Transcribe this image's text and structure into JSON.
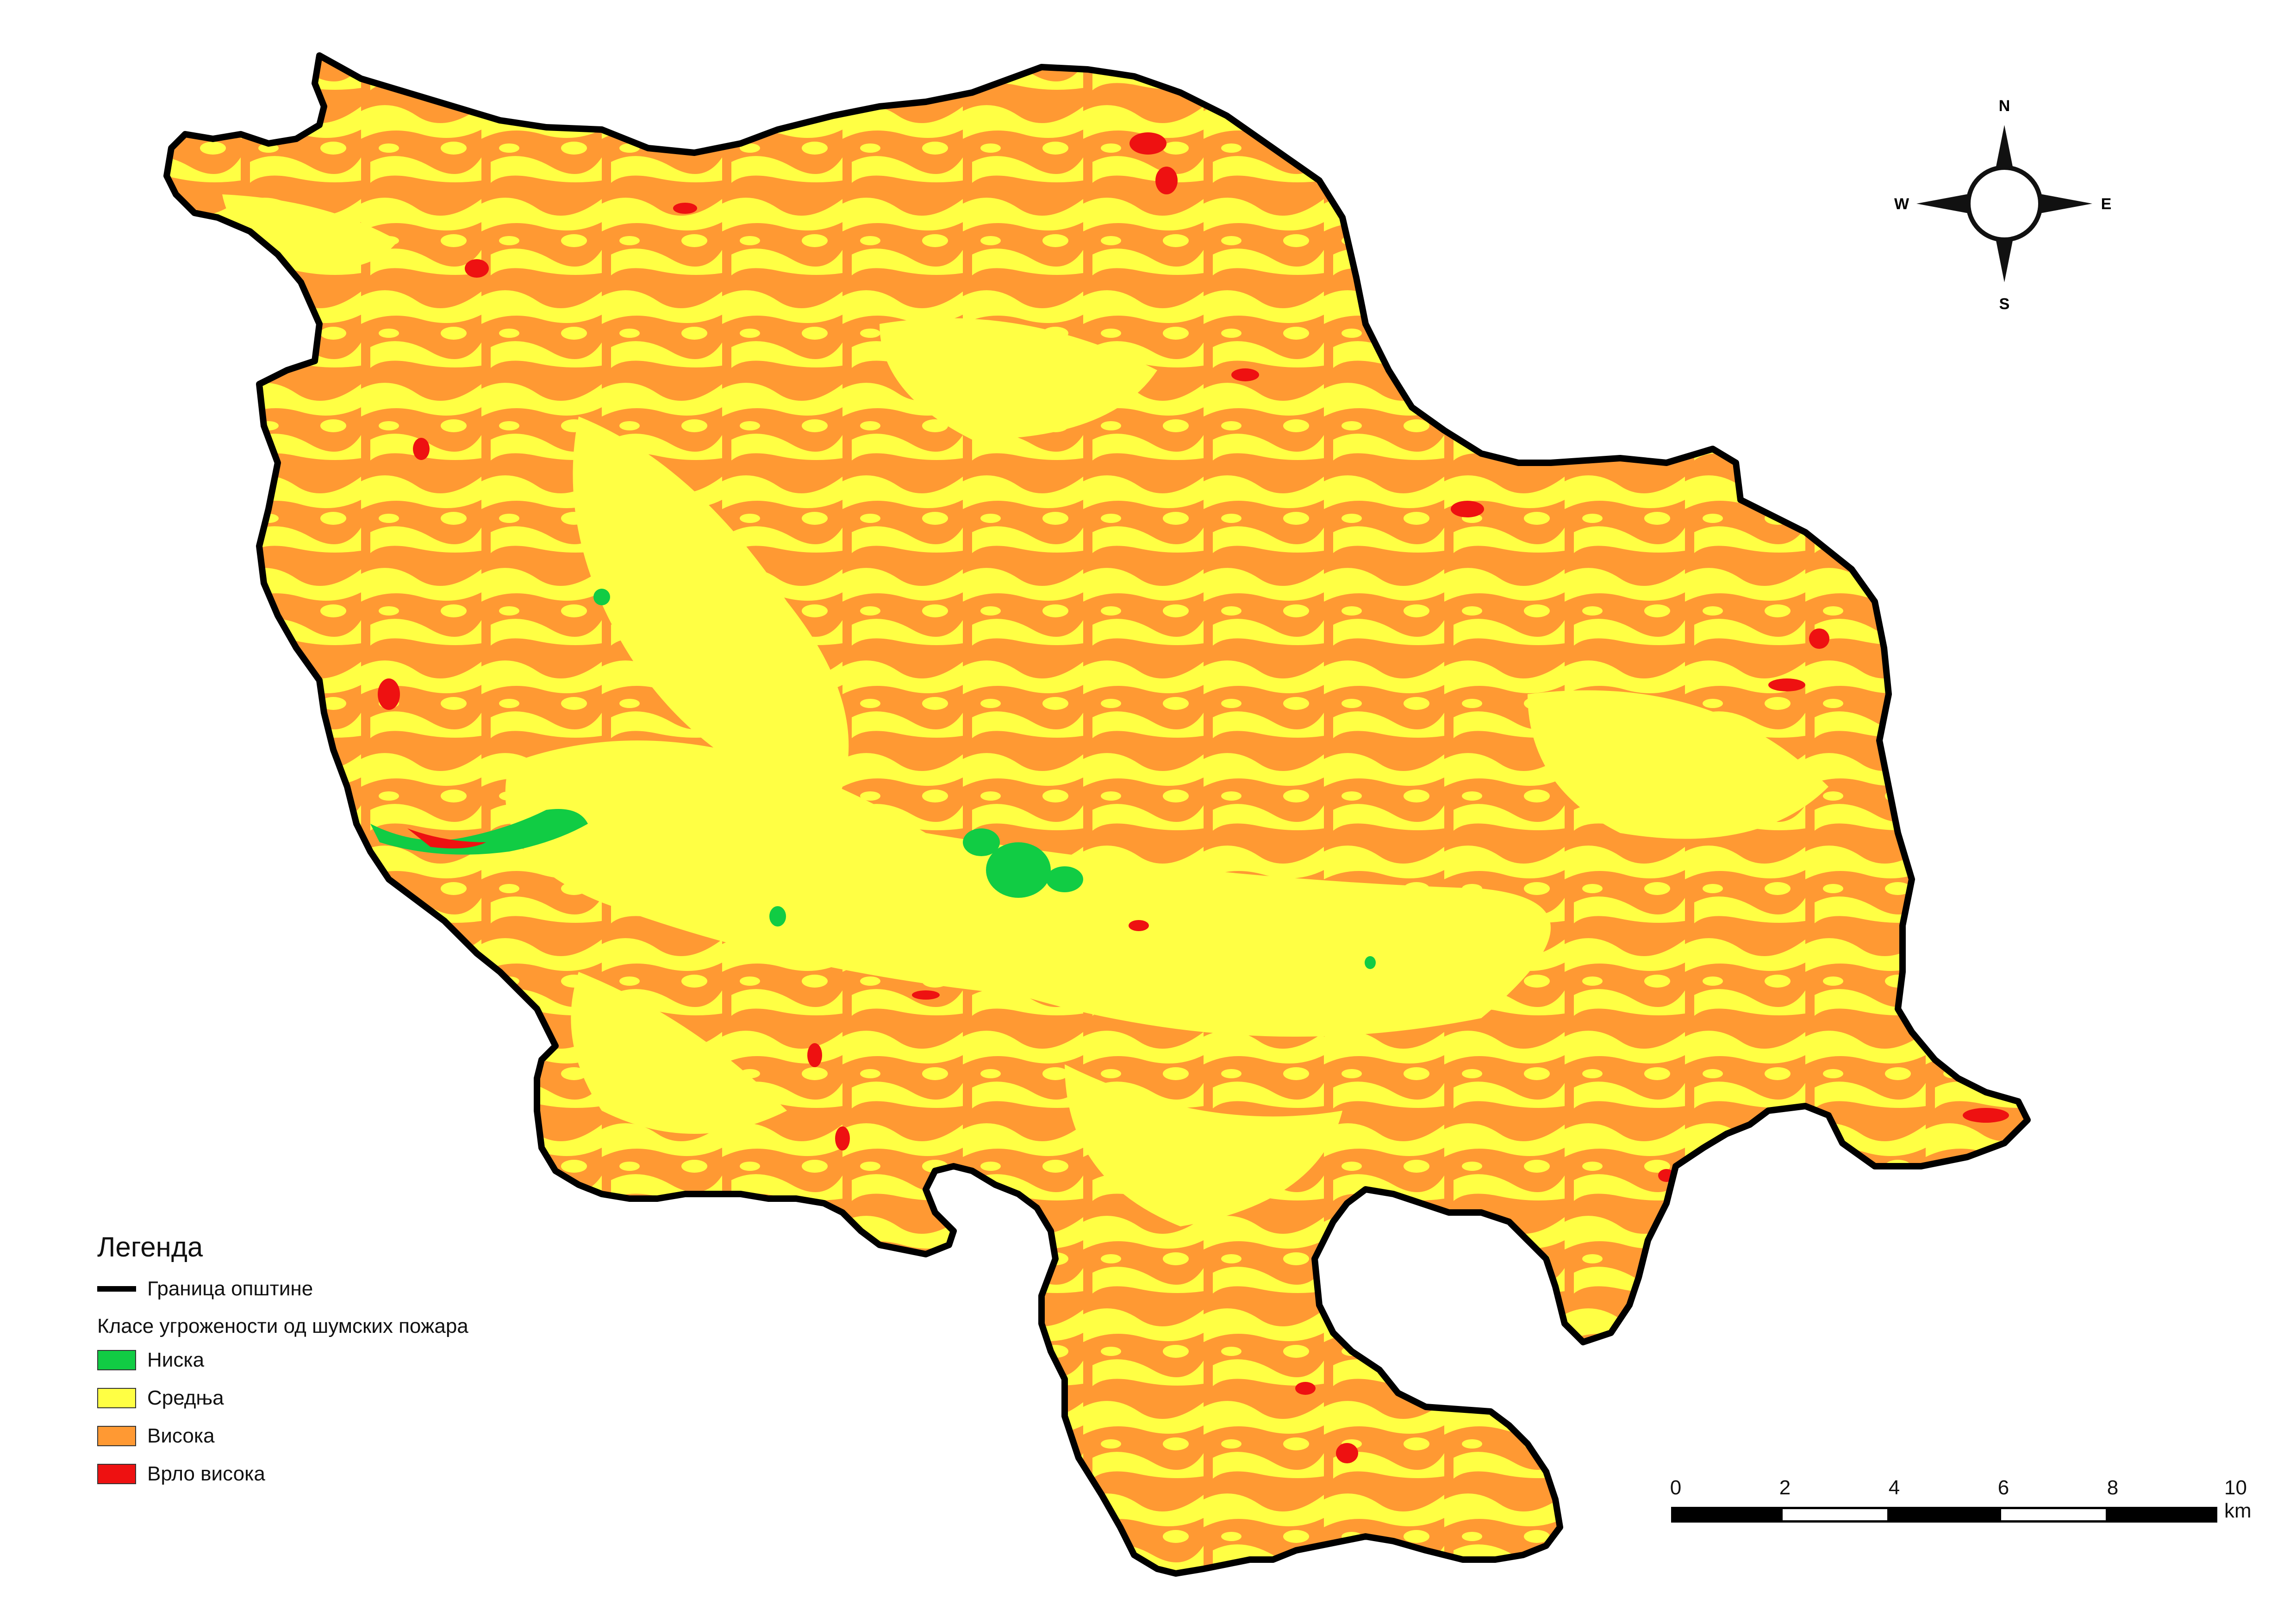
{
  "legend": {
    "title": "Легенда",
    "boundary_label": "Граница општине",
    "class_title": "Класе угрожености од шумских пожара",
    "classes": [
      {
        "label": "Ниска",
        "color": "#11cc44"
      },
      {
        "label": "Средња",
        "color": "#ffff44"
      },
      {
        "label": "Висока",
        "color": "#ff9933"
      },
      {
        "label": "Врло висока",
        "color": "#ee1111"
      }
    ]
  },
  "scale": {
    "labels": [
      "0",
      "2",
      "4",
      "6",
      "8",
      "10 km"
    ]
  },
  "compass": {
    "n": "N",
    "s": "S",
    "e": "E",
    "w": "W"
  },
  "colors": {
    "boundary": "#000000",
    "low": "#11cc44",
    "medium": "#ffff44",
    "high": "#ff9933",
    "very_high": "#ee1111"
  }
}
